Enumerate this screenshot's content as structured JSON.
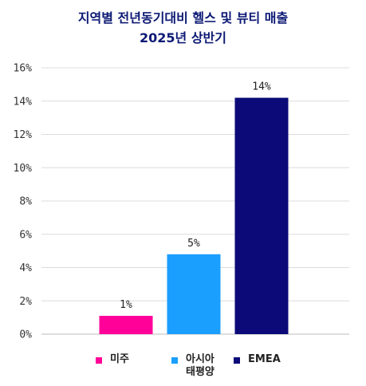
{
  "title_line1": "지역별 전년동기대비 헬스 및 뷰티 매출",
  "title_line2": "2025년 상반기",
  "chart_data": {
    "type": "bar",
    "categories": [
      "미주",
      "아시아 태평양",
      "EMEA"
    ],
    "values": [
      1.1,
      4.8,
      14.2
    ],
    "data_labels": [
      "1%",
      "5%",
      "14%"
    ],
    "colors": [
      "#ff0099",
      "#1a9fff",
      "#0b0a78"
    ],
    "yticks": [
      "0%",
      "2%",
      "4%",
      "6%",
      "8%",
      "10%",
      "12%",
      "14%",
      "16%"
    ],
    "ylim": [
      0,
      16
    ],
    "grid": true,
    "legend_position": "bottom",
    "legend": [
      {
        "label": "미주",
        "color": "#ff0099",
        "icon": "square-swatch"
      },
      {
        "label_line1": "아시아",
        "label_line2": "태평양",
        "color": "#1a9fff",
        "icon": "square-swatch"
      },
      {
        "label": "EMEA",
        "color": "#0b0a78",
        "icon": "square-swatch"
      }
    ]
  }
}
